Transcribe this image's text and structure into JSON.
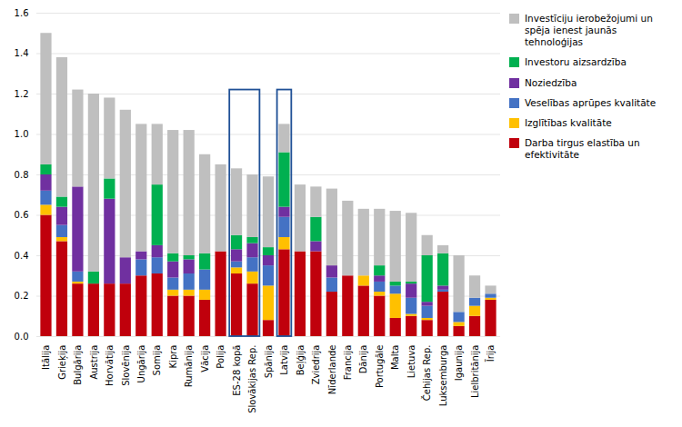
{
  "chart_data": {
    "type": "bar",
    "stacked": true,
    "categories": [
      "Itālija",
      "Grieķija",
      "Bulgārija",
      "Austrija",
      "Horvātija",
      "Slovēnija",
      "Ungārija",
      "Somija",
      "Kipra",
      "Rumānija",
      "Vācija",
      "Polija",
      "ES-28 kopā",
      "Slovākijas Rep.",
      "Spānija",
      "Latvija",
      "Beļģija",
      "Zviedrija",
      "Nīderlande",
      "Francija",
      "Dānija",
      "Portugāle",
      "Malta",
      "Lietuva",
      "Čehijas Rep.",
      "Luksemburga",
      "Igaunija",
      "Lielbritānija",
      "Īrija"
    ],
    "series": [
      {
        "name": "Darba tirgus elastība un\nefektivitāte",
        "color": "#C0000C",
        "values": [
          0.6,
          0.47,
          0.26,
          0.26,
          0.26,
          0.26,
          0.3,
          0.31,
          0.2,
          0.2,
          0.18,
          0.42,
          0.31,
          0.26,
          0.08,
          0.43,
          0.42,
          0.42,
          0.22,
          0.3,
          0.25,
          0.2,
          0.09,
          0.1,
          0.08,
          0.22,
          0.05,
          0.1,
          0.18
        ]
      },
      {
        "name": "Izglītības kvalitāte",
        "color": "#FFC000",
        "values": [
          0.05,
          0.02,
          0.01,
          0.0,
          0.0,
          0.0,
          0.0,
          0.0,
          0.03,
          0.03,
          0.05,
          0.0,
          0.03,
          0.06,
          0.17,
          0.06,
          0.0,
          0.0,
          0.0,
          0.0,
          0.05,
          0.02,
          0.12,
          0.01,
          0.01,
          0.0,
          0.02,
          0.05,
          0.01
        ]
      },
      {
        "name": "Veselības aprūpes kvalitāte",
        "color": "#4472C4",
        "values": [
          0.07,
          0.06,
          0.05,
          0.0,
          0.0,
          0.0,
          0.08,
          0.08,
          0.06,
          0.08,
          0.1,
          0.0,
          0.03,
          0.07,
          0.1,
          0.1,
          0.0,
          0.0,
          0.07,
          0.0,
          0.0,
          0.05,
          0.04,
          0.08,
          0.06,
          0.01,
          0.05,
          0.04,
          0.02
        ]
      },
      {
        "name": "Noziedzība",
        "color": "#7030A0",
        "values": [
          0.08,
          0.09,
          0.42,
          0.0,
          0.42,
          0.13,
          0.04,
          0.06,
          0.08,
          0.07,
          0.0,
          0.0,
          0.06,
          0.07,
          0.05,
          0.05,
          0.0,
          0.05,
          0.06,
          0.0,
          0.0,
          0.03,
          0.0,
          0.07,
          0.02,
          0.02,
          0.0,
          0.0,
          0.0
        ]
      },
      {
        "name": "Investoru aizsardzība",
        "color": "#00B050",
        "values": [
          0.05,
          0.05,
          0.0,
          0.06,
          0.1,
          0.0,
          0.0,
          0.3,
          0.04,
          0.02,
          0.08,
          0.0,
          0.07,
          0.03,
          0.04,
          0.27,
          0.0,
          0.12,
          0.0,
          0.0,
          0.0,
          0.05,
          0.02,
          0.01,
          0.23,
          0.16,
          0.0,
          0.0,
          0.0
        ]
      },
      {
        "name": "Investīciju ierobežojumi un\nspēja ienest jaunās\ntehnoloģijas",
        "color": "#BFBFBF",
        "values": [
          0.65,
          0.69,
          0.48,
          0.88,
          0.4,
          0.73,
          0.63,
          0.3,
          0.61,
          0.62,
          0.49,
          0.43,
          0.33,
          0.31,
          0.35,
          0.14,
          0.33,
          0.15,
          0.38,
          0.37,
          0.33,
          0.28,
          0.35,
          0.34,
          0.1,
          0.04,
          0.28,
          0.11,
          0.04
        ]
      }
    ],
    "ylim": [
      0.0,
      1.6
    ],
    "yticks": [
      {
        "value": 0,
        "label": "0.0"
      },
      0.2,
      0.4,
      0.6,
      0.8,
      {
        "value": 1,
        "label": "1.0"
      },
      1.2,
      1.4,
      1.6
    ],
    "grid": true,
    "legend": "right",
    "boxes": [
      {
        "categories": [
          "ES-28 kopā",
          "Slovākijas Rep."
        ],
        "top": 1.22,
        "color": "#1F5096"
      },
      {
        "categories": [
          "Latvija"
        ],
        "top": 1.22,
        "color": "#1F5096"
      }
    ]
  }
}
